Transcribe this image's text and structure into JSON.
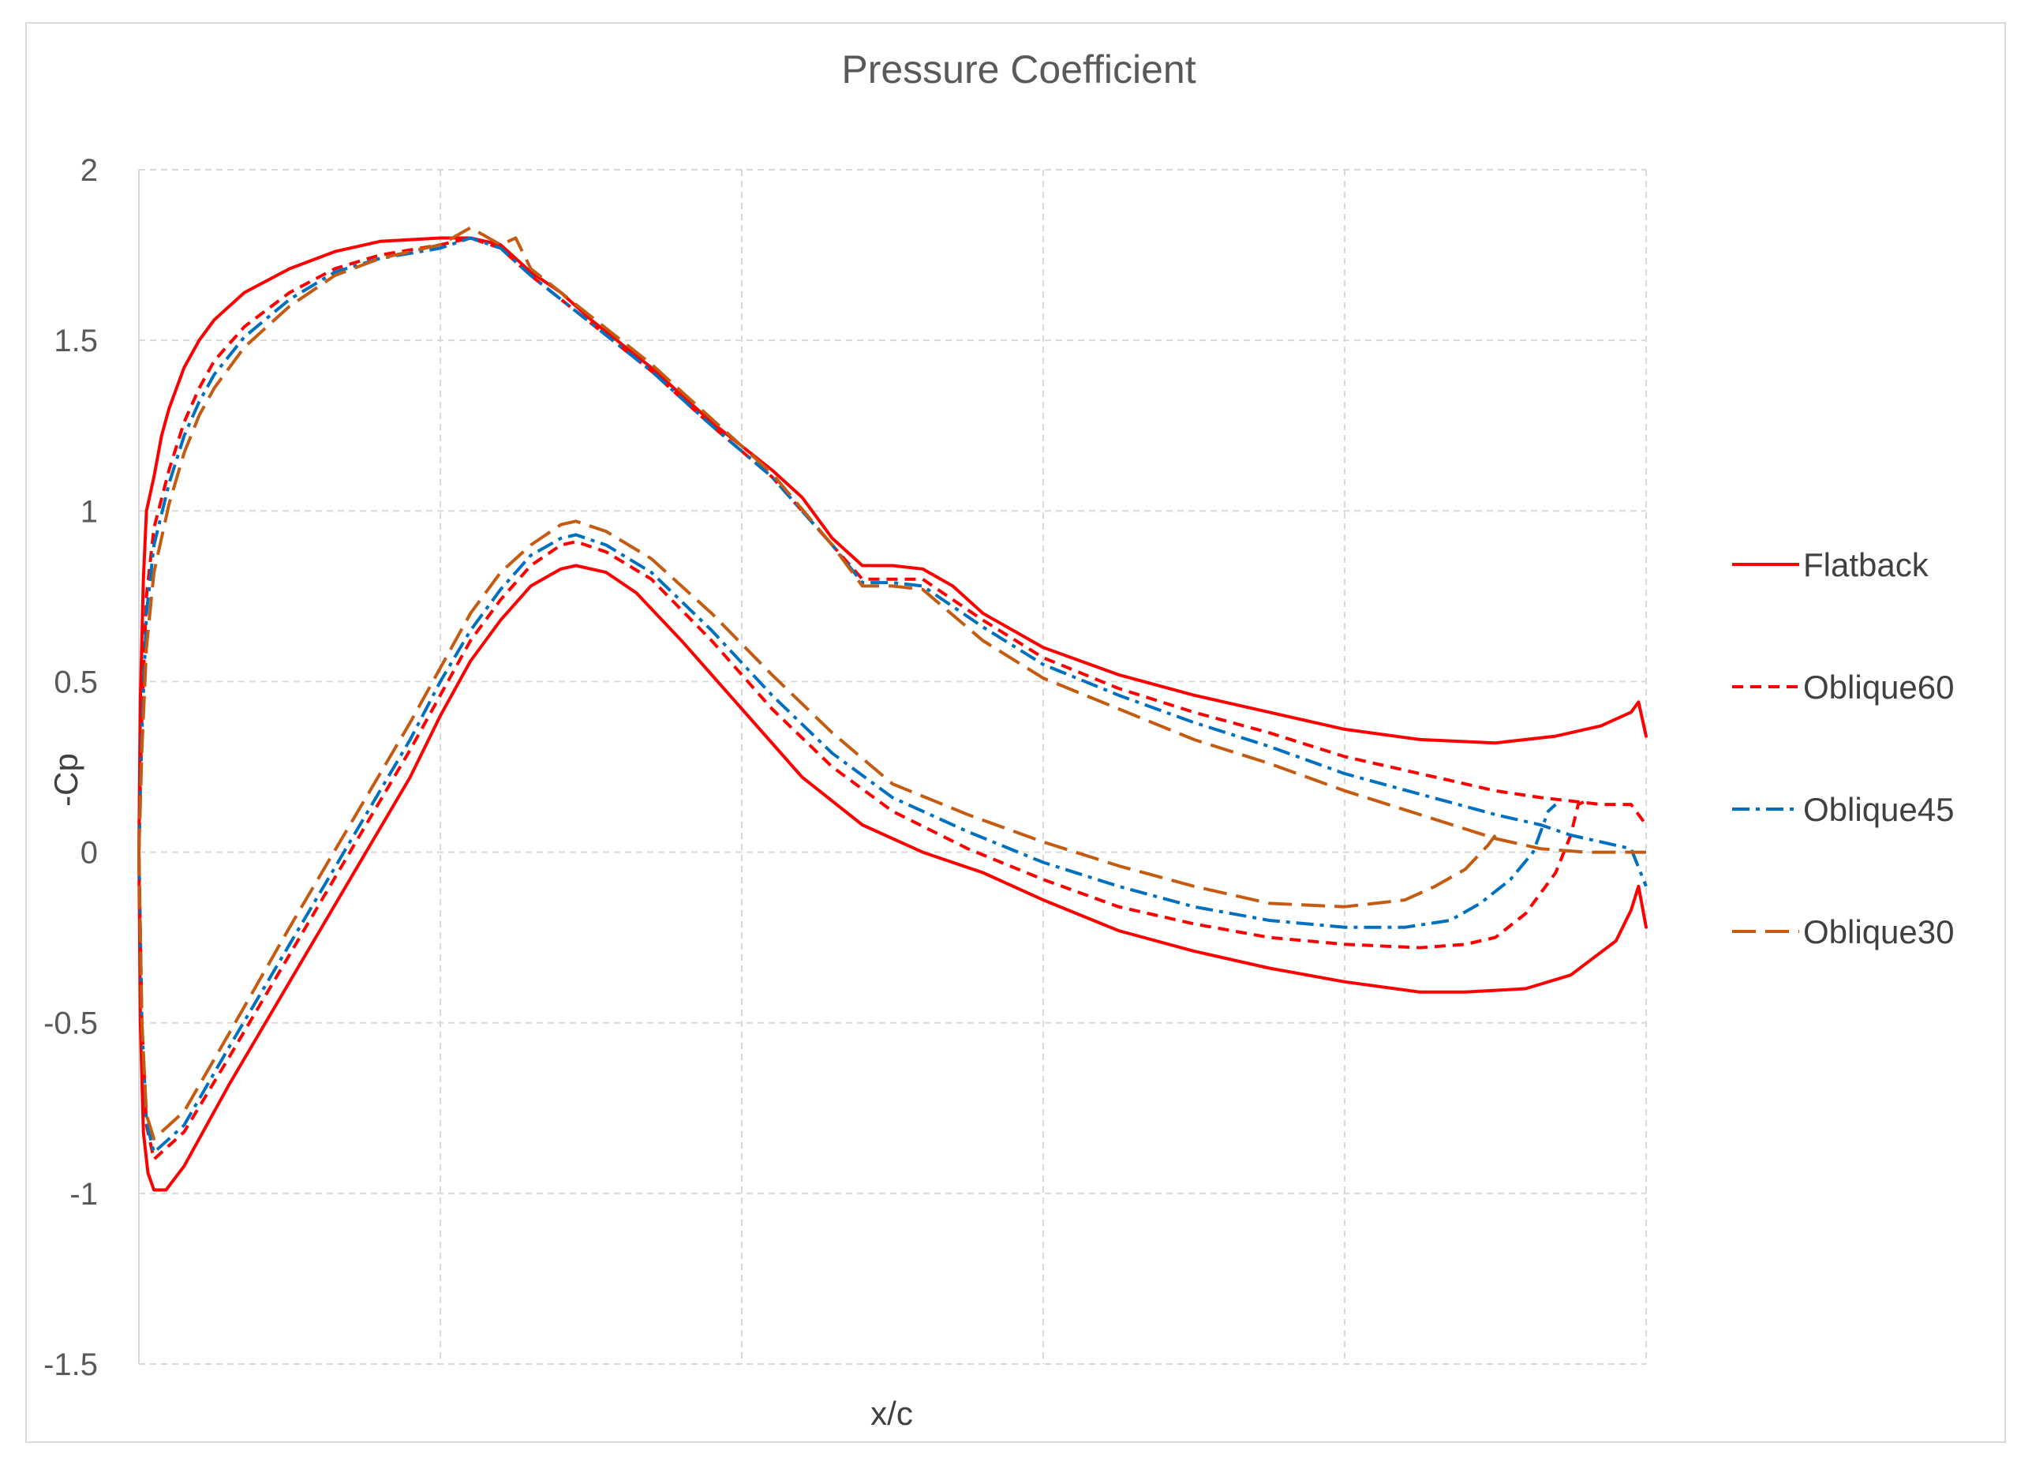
{
  "chart_data": {
    "type": "line",
    "title": "Pressure Coefficient",
    "xlabel": "x/c",
    "ylabel": "-Cp",
    "xlim": [
      0,
      1
    ],
    "ylim": [
      -1.5,
      2
    ],
    "yticks": [
      "2",
      "1.5",
      "1",
      "0.5",
      "0",
      "-0.5",
      "-1",
      "-1.5"
    ],
    "ytick_values": [
      2,
      1.5,
      1,
      0.5,
      0,
      -0.5,
      -1,
      -1.5
    ],
    "xgrid": [
      0,
      0.2,
      0.4,
      0.6,
      0.8,
      1.0
    ],
    "grid": true,
    "legend_position": "right",
    "series": [
      {
        "name": "Flatback",
        "color": "#ff0000",
        "dash": "solid",
        "upper": [
          [
            0,
            0
          ],
          [
            0.001,
            0.45
          ],
          [
            0.003,
            0.8
          ],
          [
            0.005,
            1.0
          ],
          [
            0.01,
            1.1
          ],
          [
            0.015,
            1.22
          ],
          [
            0.02,
            1.3
          ],
          [
            0.03,
            1.42
          ],
          [
            0.04,
            1.5
          ],
          [
            0.05,
            1.56
          ],
          [
            0.07,
            1.64
          ],
          [
            0.1,
            1.71
          ],
          [
            0.13,
            1.76
          ],
          [
            0.16,
            1.79
          ],
          [
            0.2,
            1.8
          ],
          [
            0.22,
            1.8
          ],
          [
            0.24,
            1.78
          ],
          [
            0.26,
            1.7
          ],
          [
            0.28,
            1.64
          ],
          [
            0.3,
            1.56
          ],
          [
            0.34,
            1.42
          ],
          [
            0.38,
            1.26
          ],
          [
            0.42,
            1.12
          ],
          [
            0.44,
            1.04
          ],
          [
            0.46,
            0.92
          ],
          [
            0.48,
            0.84
          ],
          [
            0.5,
            0.84
          ],
          [
            0.52,
            0.83
          ],
          [
            0.54,
            0.78
          ],
          [
            0.56,
            0.7
          ],
          [
            0.6,
            0.6
          ],
          [
            0.65,
            0.52
          ],
          [
            0.7,
            0.46
          ],
          [
            0.75,
            0.41
          ],
          [
            0.8,
            0.36
          ],
          [
            0.85,
            0.33
          ],
          [
            0.9,
            0.32
          ],
          [
            0.94,
            0.34
          ],
          [
            0.97,
            0.37
          ],
          [
            0.99,
            0.41
          ],
          [
            0.995,
            0.44
          ],
          [
            1.0,
            0.34
          ]
        ],
        "lower": [
          [
            0,
            0
          ],
          [
            0.001,
            -0.5
          ],
          [
            0.003,
            -0.82
          ],
          [
            0.006,
            -0.94
          ],
          [
            0.01,
            -0.99
          ],
          [
            0.018,
            -0.99
          ],
          [
            0.03,
            -0.92
          ],
          [
            0.06,
            -0.68
          ],
          [
            0.1,
            -0.38
          ],
          [
            0.14,
            -0.08
          ],
          [
            0.18,
            0.22
          ],
          [
            0.2,
            0.4
          ],
          [
            0.22,
            0.56
          ],
          [
            0.24,
            0.68
          ],
          [
            0.26,
            0.78
          ],
          [
            0.28,
            0.83
          ],
          [
            0.29,
            0.84
          ],
          [
            0.31,
            0.82
          ],
          [
            0.33,
            0.76
          ],
          [
            0.36,
            0.62
          ],
          [
            0.4,
            0.42
          ],
          [
            0.44,
            0.22
          ],
          [
            0.48,
            0.08
          ],
          [
            0.52,
            0
          ],
          [
            0.56,
            -0.06
          ],
          [
            0.6,
            -0.14
          ],
          [
            0.65,
            -0.23
          ],
          [
            0.7,
            -0.29
          ],
          [
            0.75,
            -0.34
          ],
          [
            0.8,
            -0.38
          ],
          [
            0.85,
            -0.41
          ],
          [
            0.88,
            -0.41
          ],
          [
            0.92,
            -0.4
          ],
          [
            0.95,
            -0.36
          ],
          [
            0.98,
            -0.26
          ],
          [
            0.99,
            -0.17
          ],
          [
            0.995,
            -0.1
          ],
          [
            1.0,
            -0.22
          ]
        ]
      },
      {
        "name": "Oblique60",
        "color": "#ff0000",
        "dash": "dash",
        "upper": [
          [
            0,
            0
          ],
          [
            0.002,
            0.4
          ],
          [
            0.005,
            0.75
          ],
          [
            0.01,
            0.95
          ],
          [
            0.02,
            1.12
          ],
          [
            0.03,
            1.26
          ],
          [
            0.04,
            1.36
          ],
          [
            0.05,
            1.44
          ],
          [
            0.07,
            1.54
          ],
          [
            0.1,
            1.64
          ],
          [
            0.13,
            1.71
          ],
          [
            0.16,
            1.75
          ],
          [
            0.2,
            1.78
          ],
          [
            0.22,
            1.8
          ],
          [
            0.24,
            1.77
          ],
          [
            0.26,
            1.69
          ],
          [
            0.3,
            1.55
          ],
          [
            0.34,
            1.41
          ],
          [
            0.38,
            1.25
          ],
          [
            0.42,
            1.1
          ],
          [
            0.46,
            0.9
          ],
          [
            0.48,
            0.8
          ],
          [
            0.5,
            0.8
          ],
          [
            0.52,
            0.8
          ],
          [
            0.56,
            0.68
          ],
          [
            0.6,
            0.57
          ],
          [
            0.65,
            0.48
          ],
          [
            0.7,
            0.41
          ],
          [
            0.75,
            0.35
          ],
          [
            0.8,
            0.28
          ],
          [
            0.85,
            0.23
          ],
          [
            0.9,
            0.18
          ],
          [
            0.93,
            0.16
          ],
          [
            0.95,
            0.15
          ],
          [
            0.97,
            0.14
          ],
          [
            0.99,
            0.14
          ],
          [
            1.0,
            0.08
          ]
        ],
        "lower": [
          [
            0,
            0
          ],
          [
            0.002,
            -0.5
          ],
          [
            0.005,
            -0.8
          ],
          [
            0.01,
            -0.9
          ],
          [
            0.03,
            -0.82
          ],
          [
            0.06,
            -0.6
          ],
          [
            0.1,
            -0.3
          ],
          [
            0.14,
            0
          ],
          [
            0.18,
            0.3
          ],
          [
            0.2,
            0.46
          ],
          [
            0.22,
            0.62
          ],
          [
            0.24,
            0.74
          ],
          [
            0.26,
            0.84
          ],
          [
            0.28,
            0.9
          ],
          [
            0.29,
            0.91
          ],
          [
            0.31,
            0.88
          ],
          [
            0.34,
            0.8
          ],
          [
            0.38,
            0.62
          ],
          [
            0.42,
            0.42
          ],
          [
            0.46,
            0.25
          ],
          [
            0.5,
            0.12
          ],
          [
            0.55,
            0.01
          ],
          [
            0.6,
            -0.08
          ],
          [
            0.65,
            -0.16
          ],
          [
            0.7,
            -0.21
          ],
          [
            0.75,
            -0.25
          ],
          [
            0.8,
            -0.27
          ],
          [
            0.85,
            -0.28
          ],
          [
            0.88,
            -0.27
          ],
          [
            0.9,
            -0.25
          ],
          [
            0.92,
            -0.18
          ],
          [
            0.94,
            -0.06
          ],
          [
            0.95,
            0.05
          ],
          [
            0.955,
            0.14
          ],
          [
            0.96,
            0.15
          ]
        ]
      },
      {
        "name": "Oblique45",
        "color": "#0070c0",
        "dash": "dashdot",
        "upper": [
          [
            0,
            0
          ],
          [
            0.002,
            0.35
          ],
          [
            0.005,
            0.7
          ],
          [
            0.01,
            0.9
          ],
          [
            0.02,
            1.08
          ],
          [
            0.03,
            1.22
          ],
          [
            0.04,
            1.32
          ],
          [
            0.05,
            1.4
          ],
          [
            0.07,
            1.51
          ],
          [
            0.1,
            1.62
          ],
          [
            0.13,
            1.7
          ],
          [
            0.16,
            1.74
          ],
          [
            0.2,
            1.77
          ],
          [
            0.22,
            1.8
          ],
          [
            0.24,
            1.77
          ],
          [
            0.26,
            1.69
          ],
          [
            0.3,
            1.55
          ],
          [
            0.34,
            1.41
          ],
          [
            0.38,
            1.25
          ],
          [
            0.42,
            1.1
          ],
          [
            0.46,
            0.9
          ],
          [
            0.48,
            0.79
          ],
          [
            0.5,
            0.79
          ],
          [
            0.52,
            0.78
          ],
          [
            0.56,
            0.66
          ],
          [
            0.6,
            0.55
          ],
          [
            0.65,
            0.46
          ],
          [
            0.7,
            0.38
          ],
          [
            0.75,
            0.31
          ],
          [
            0.8,
            0.23
          ],
          [
            0.85,
            0.17
          ],
          [
            0.9,
            0.11
          ],
          [
            0.93,
            0.08
          ],
          [
            0.95,
            0.05
          ],
          [
            0.97,
            0.03
          ],
          [
            0.99,
            0.01
          ],
          [
            1.0,
            -0.1
          ]
        ],
        "lower": [
          [
            0,
            0
          ],
          [
            0.002,
            -0.5
          ],
          [
            0.005,
            -0.79
          ],
          [
            0.01,
            -0.88
          ],
          [
            0.03,
            -0.8
          ],
          [
            0.06,
            -0.57
          ],
          [
            0.1,
            -0.27
          ],
          [
            0.14,
            0.03
          ],
          [
            0.18,
            0.33
          ],
          [
            0.2,
            0.5
          ],
          [
            0.22,
            0.65
          ],
          [
            0.24,
            0.77
          ],
          [
            0.26,
            0.87
          ],
          [
            0.28,
            0.92
          ],
          [
            0.29,
            0.93
          ],
          [
            0.31,
            0.9
          ],
          [
            0.34,
            0.82
          ],
          [
            0.38,
            0.65
          ],
          [
            0.42,
            0.46
          ],
          [
            0.46,
            0.29
          ],
          [
            0.5,
            0.16
          ],
          [
            0.55,
            0.06
          ],
          [
            0.6,
            -0.03
          ],
          [
            0.65,
            -0.1
          ],
          [
            0.7,
            -0.16
          ],
          [
            0.75,
            -0.2
          ],
          [
            0.8,
            -0.22
          ],
          [
            0.84,
            -0.22
          ],
          [
            0.87,
            -0.2
          ],
          [
            0.89,
            -0.15
          ],
          [
            0.91,
            -0.08
          ],
          [
            0.925,
            0
          ],
          [
            0.935,
            0.12
          ],
          [
            0.94,
            0.14
          ]
        ]
      },
      {
        "name": "Oblique30",
        "color": "#c55a11",
        "dash": "longdash",
        "upper": [
          [
            0,
            0
          ],
          [
            0.002,
            0.3
          ],
          [
            0.005,
            0.6
          ],
          [
            0.01,
            0.82
          ],
          [
            0.02,
            1.02
          ],
          [
            0.03,
            1.17
          ],
          [
            0.04,
            1.28
          ],
          [
            0.05,
            1.36
          ],
          [
            0.07,
            1.48
          ],
          [
            0.1,
            1.6
          ],
          [
            0.13,
            1.69
          ],
          [
            0.16,
            1.74
          ],
          [
            0.2,
            1.78
          ],
          [
            0.22,
            1.83
          ],
          [
            0.24,
            1.78
          ],
          [
            0.25,
            1.8
          ],
          [
            0.26,
            1.71
          ],
          [
            0.3,
            1.57
          ],
          [
            0.34,
            1.43
          ],
          [
            0.38,
            1.27
          ],
          [
            0.42,
            1.11
          ],
          [
            0.46,
            0.9
          ],
          [
            0.48,
            0.78
          ],
          [
            0.5,
            0.78
          ],
          [
            0.52,
            0.77
          ],
          [
            0.56,
            0.62
          ],
          [
            0.6,
            0.51
          ],
          [
            0.65,
            0.42
          ],
          [
            0.7,
            0.33
          ],
          [
            0.75,
            0.26
          ],
          [
            0.8,
            0.18
          ],
          [
            0.85,
            0.11
          ],
          [
            0.9,
            0.04
          ],
          [
            0.93,
            0.01
          ],
          [
            0.96,
            0
          ],
          [
            0.99,
            0
          ],
          [
            1.0,
            0
          ]
        ],
        "lower": [
          [
            0,
            0
          ],
          [
            0.002,
            -0.5
          ],
          [
            0.005,
            -0.77
          ],
          [
            0.01,
            -0.84
          ],
          [
            0.03,
            -0.76
          ],
          [
            0.06,
            -0.53
          ],
          [
            0.1,
            -0.22
          ],
          [
            0.14,
            0.08
          ],
          [
            0.18,
            0.38
          ],
          [
            0.2,
            0.54
          ],
          [
            0.22,
            0.7
          ],
          [
            0.24,
            0.82
          ],
          [
            0.26,
            0.9
          ],
          [
            0.28,
            0.96
          ],
          [
            0.29,
            0.97
          ],
          [
            0.31,
            0.94
          ],
          [
            0.34,
            0.86
          ],
          [
            0.38,
            0.7
          ],
          [
            0.42,
            0.52
          ],
          [
            0.46,
            0.35
          ],
          [
            0.5,
            0.2
          ],
          [
            0.55,
            0.11
          ],
          [
            0.6,
            0.03
          ],
          [
            0.65,
            -0.04
          ],
          [
            0.7,
            -0.1
          ],
          [
            0.75,
            -0.15
          ],
          [
            0.8,
            -0.16
          ],
          [
            0.84,
            -0.14
          ],
          [
            0.86,
            -0.1
          ],
          [
            0.88,
            -0.05
          ],
          [
            0.895,
            0.02
          ],
          [
            0.9,
            0.05
          ]
        ]
      }
    ]
  }
}
